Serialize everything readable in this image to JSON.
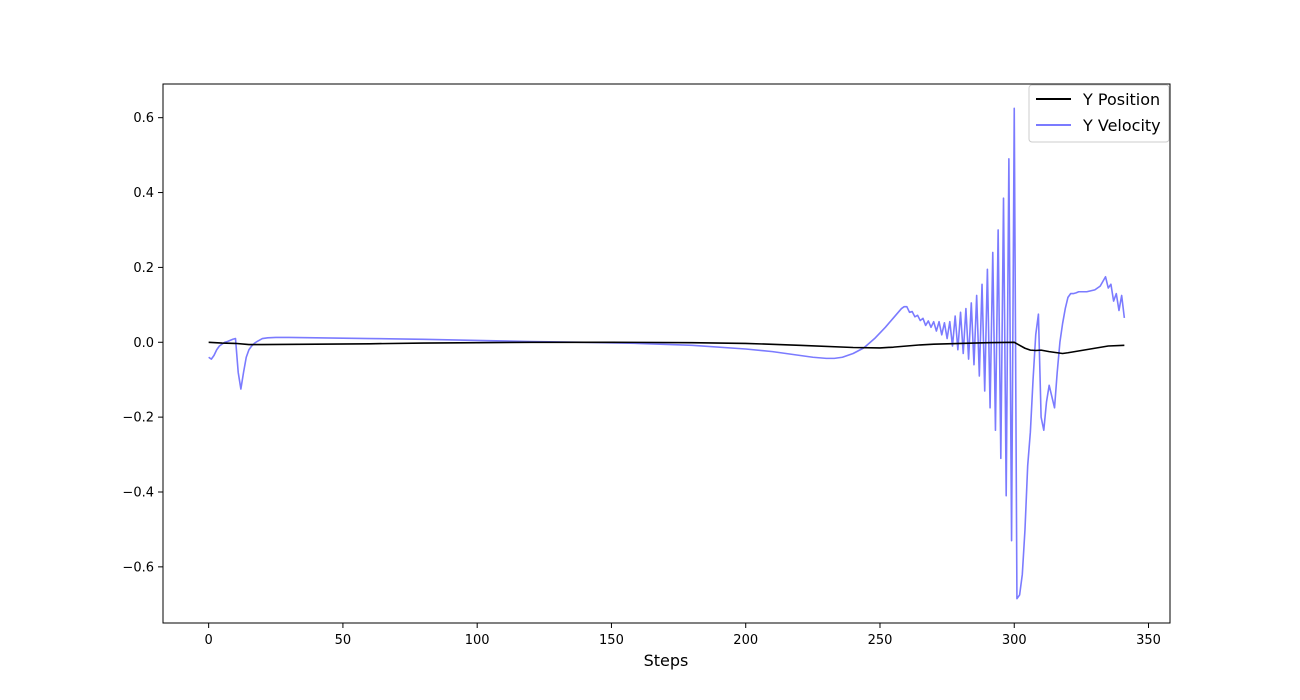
{
  "chart_data": {
    "type": "line",
    "title": "",
    "xlabel": "Steps",
    "ylabel": "",
    "xlim": [
      -17,
      358
    ],
    "ylim": [
      -0.75,
      0.69
    ],
    "xticks": [
      0,
      50,
      100,
      150,
      200,
      250,
      300,
      350
    ],
    "yticks": [
      -0.6,
      -0.4,
      -0.2,
      0.0,
      0.2,
      0.4,
      0.6
    ],
    "xtick_labels": [
      "0",
      "50",
      "100",
      "150",
      "200",
      "250",
      "300",
      "350"
    ],
    "ytick_labels": [
      "−0.6",
      "−0.4",
      "−0.2",
      "0.0",
      "0.2",
      "0.4",
      "0.6"
    ],
    "grid": false,
    "legend_position": "top-right",
    "series": [
      {
        "name": "Y Position",
        "color": "#000000",
        "x": [
          0,
          5,
          10,
          15,
          20,
          40,
          60,
          80,
          100,
          120,
          150,
          180,
          200,
          220,
          240,
          250,
          255,
          260,
          265,
          270,
          280,
          290,
          300,
          302,
          304,
          306,
          308,
          310,
          313,
          316,
          318,
          320,
          325,
          330,
          335,
          341
        ],
        "y": [
          0.0,
          -0.002,
          -0.003,
          -0.006,
          -0.006,
          -0.005,
          -0.004,
          -0.002,
          -0.001,
          0.0,
          0.0,
          -0.001,
          -0.003,
          -0.008,
          -0.014,
          -0.015,
          -0.013,
          -0.01,
          -0.007,
          -0.005,
          -0.003,
          -0.001,
          0.0,
          -0.008,
          -0.016,
          -0.021,
          -0.022,
          -0.021,
          -0.025,
          -0.028,
          -0.03,
          -0.028,
          -0.022,
          -0.016,
          -0.01,
          -0.008
        ]
      },
      {
        "name": "Y Velocity",
        "color": "#7b7bff",
        "x": [
          0,
          1,
          2,
          3,
          4,
          5,
          6,
          7,
          8,
          9,
          10,
          11,
          12,
          13,
          14,
          15,
          16,
          17,
          18,
          19,
          20,
          22,
          25,
          30,
          40,
          60,
          80,
          100,
          120,
          140,
          160,
          180,
          200,
          210,
          220,
          225,
          230,
          233,
          236,
          240,
          244,
          248,
          252,
          255,
          258,
          259,
          260,
          261,
          262,
          263,
          264,
          265,
          266,
          267,
          268,
          269,
          270,
          271,
          272,
          273,
          274,
          275,
          276,
          277,
          278,
          279,
          280,
          281,
          282,
          283,
          284,
          285,
          286,
          287,
          288,
          289,
          290,
          291,
          292,
          293,
          294,
          295,
          296,
          297,
          298,
          299,
          300,
          301,
          302,
          303,
          304,
          305,
          306,
          307,
          308,
          309,
          310,
          311,
          312,
          313,
          314,
          315,
          316,
          317,
          318,
          319,
          320,
          321,
          322,
          323,
          324,
          325,
          327,
          330,
          332,
          334,
          335,
          336,
          337,
          338,
          339,
          340,
          341
        ],
        "y": [
          -0.04,
          -0.045,
          -0.035,
          -0.02,
          -0.01,
          -0.005,
          0.0,
          0.002,
          0.005,
          0.008,
          0.01,
          -0.08,
          -0.125,
          -0.08,
          -0.04,
          -0.02,
          -0.01,
          -0.003,
          0.002,
          0.006,
          0.01,
          0.012,
          0.013,
          0.013,
          0.012,
          0.01,
          0.008,
          0.005,
          0.002,
          0.0,
          -0.003,
          -0.008,
          -0.018,
          -0.025,
          -0.035,
          -0.04,
          -0.043,
          -0.043,
          -0.04,
          -0.03,
          -0.015,
          0.01,
          0.04,
          0.065,
          0.09,
          0.095,
          0.095,
          0.08,
          0.082,
          0.068,
          0.072,
          0.058,
          0.064,
          0.045,
          0.057,
          0.04,
          0.055,
          0.03,
          0.055,
          0.02,
          0.052,
          0.01,
          0.055,
          -0.01,
          0.07,
          -0.02,
          0.08,
          -0.03,
          0.09,
          -0.045,
          0.105,
          -0.06,
          0.125,
          -0.09,
          0.155,
          -0.13,
          0.195,
          -0.175,
          0.24,
          -0.235,
          0.3,
          -0.31,
          0.385,
          -0.41,
          0.49,
          -0.53,
          0.625,
          -0.685,
          -0.675,
          -0.62,
          -0.5,
          -0.33,
          -0.24,
          -0.1,
          0.02,
          0.075,
          -0.2,
          -0.235,
          -0.16,
          -0.115,
          -0.145,
          -0.175,
          -0.08,
          0.0,
          0.05,
          0.09,
          0.12,
          0.13,
          0.13,
          0.132,
          0.135,
          0.135,
          0.135,
          0.14,
          0.15,
          0.175,
          0.145,
          0.155,
          0.11,
          0.13,
          0.085,
          0.125,
          0.065
        ]
      }
    ]
  }
}
